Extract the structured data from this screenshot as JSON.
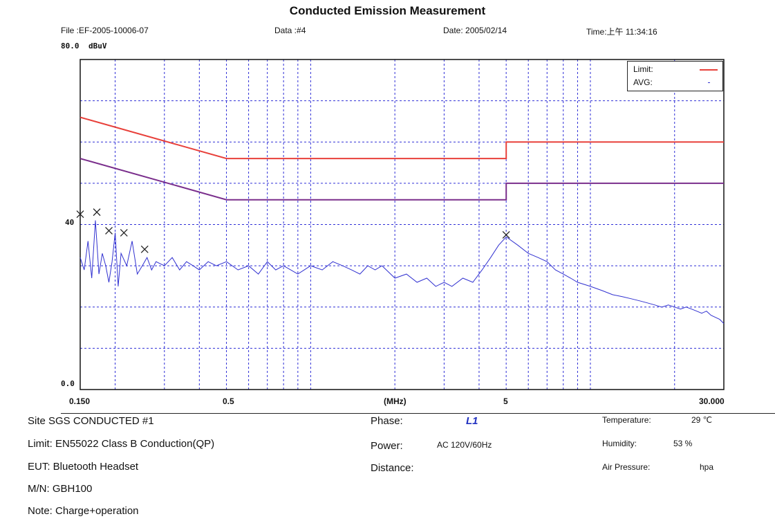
{
  "header": {
    "title": "Conducted Emission Measurement",
    "file": "File :EF-2005-10006-07",
    "data": "Data :#4",
    "date": "Date: 2005/02/14",
    "time": "Time:上午 11:34:16"
  },
  "chart_data": {
    "type": "line",
    "title": "Conducted Emission Measurement",
    "ylabel": "dBuV",
    "xlabel": "(MHz)",
    "x_scale": "log",
    "xlim": [
      0.15,
      30
    ],
    "ylim": [
      0,
      80
    ],
    "ytick_labels": [
      "80.0",
      "40",
      "0.0"
    ],
    "xtick_labels": [
      "0.150",
      "0.5",
      "(MHz)",
      "5",
      "30.000"
    ],
    "grid": true,
    "legend": {
      "placement": "top-right",
      "entries": [
        "Limit:",
        "AVG:"
      ]
    },
    "series": [
      {
        "name": "Limit:",
        "color": "#e8403a",
        "x": [
          0.15,
          0.5,
          5,
          5,
          30
        ],
        "y": [
          66,
          56,
          56,
          60,
          60
        ]
      },
      {
        "name": "AVG:",
        "color": "#7a2e8c",
        "x": [
          0.15,
          0.5,
          5,
          5,
          30
        ],
        "y": [
          56,
          46,
          46,
          50,
          50
        ]
      },
      {
        "name": "",
        "color": "#3030d0",
        "x": [
          0.15,
          0.155,
          0.16,
          0.165,
          0.17,
          0.175,
          0.18,
          0.185,
          0.19,
          0.195,
          0.2,
          0.205,
          0.21,
          0.22,
          0.23,
          0.24,
          0.25,
          0.26,
          0.27,
          0.28,
          0.3,
          0.32,
          0.34,
          0.36,
          0.38,
          0.4,
          0.43,
          0.46,
          0.5,
          0.55,
          0.6,
          0.65,
          0.7,
          0.75,
          0.8,
          0.9,
          1.0,
          1.1,
          1.2,
          1.3,
          1.4,
          1.5,
          1.6,
          1.7,
          1.8,
          2.0,
          2.2,
          2.4,
          2.6,
          2.8,
          3.0,
          3.2,
          3.5,
          3.8,
          4.1,
          4.4,
          4.7,
          5.0,
          5.5,
          6.0,
          6.5,
          7.0,
          7.5,
          8.0,
          8.5,
          9.0,
          10,
          11,
          12,
          13,
          14,
          15,
          16,
          17,
          18,
          19,
          20,
          21,
          22,
          23,
          24,
          25,
          26,
          27,
          28,
          29,
          30
        ],
        "y": [
          32,
          29,
          36,
          27,
          41,
          28,
          33,
          30,
          26,
          31,
          38,
          25,
          33,
          30,
          36,
          28,
          30,
          32,
          29,
          31,
          30,
          32,
          29,
          31,
          30,
          29,
          31,
          30,
          31,
          29,
          30,
          28,
          31,
          29,
          30,
          28,
          30,
          29,
          31,
          30,
          29,
          28,
          30,
          29,
          30,
          27,
          28,
          26,
          27,
          25,
          26,
          25,
          27,
          26,
          29,
          32,
          35,
          37,
          35,
          33,
          32,
          31,
          29,
          28,
          27,
          26,
          25,
          24,
          23,
          22.5,
          22,
          21.5,
          21,
          20.5,
          20,
          20.5,
          20,
          19.5,
          20,
          19.5,
          19,
          18.5,
          19,
          18,
          17.5,
          17,
          16
        ]
      },
      {
        "name": "",
        "color": "#222222",
        "x": [
          0.15,
          0.172,
          0.19,
          0.215,
          0.255,
          5.0
        ],
        "y": [
          42.5,
          43,
          38.5,
          38,
          34,
          37.5
        ]
      }
    ]
  },
  "info": {
    "site": "Site  SGS CONDUCTED #1",
    "limit": "Limit:  EN55022 Class B Conduction(QP)",
    "eut": "EUT:   Bluetooth Headset",
    "mn": "M/N:   GBH100",
    "note": "Note:  Charge+operation",
    "phase_label": "Phase:",
    "phase_value": "L1",
    "power_label": "Power:",
    "power_value": "AC 120V/60Hz",
    "distance_label": "Distance:",
    "temperature_label": "Temperature:",
    "temperature_value": "29 ℃",
    "humidity_label": "Humidity:",
    "humidity_value": "53 %",
    "pressure_label": "Air Pressure:",
    "pressure_value": "hpa"
  }
}
